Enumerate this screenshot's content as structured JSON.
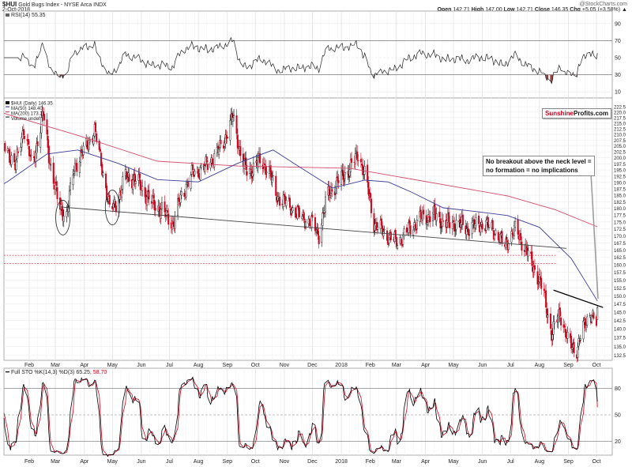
{
  "header": {
    "symbol": "$HUI",
    "name": "Gold Bugs Index - NYSE Arca INDX",
    "date": "2-Oct-2018",
    "watermark": "@StockCharts.com",
    "open_label": "Open",
    "open": "142.71",
    "high_label": "High",
    "high": "147.00",
    "low_label": "Low",
    "low": "142.71",
    "close_label": "Close",
    "close": "146.35",
    "chg_label": "Chg",
    "chg": "+5.05 (+3.58%) ▲"
  },
  "logo": {
    "part1": "Sunshine",
    "part2": "Profits.com",
    "color1": "#d0021b"
  },
  "annotation": {
    "line1": "No breakout above the neck level =",
    "line2": "no formation = no implications"
  },
  "colors": {
    "up": "#000000",
    "down": "#d0021b",
    "ma50": "#3b3b9b",
    "ma200": "#d64a6a",
    "rsi": "#222222",
    "rsi_fill": "#8b3a3a",
    "sto_k": "#000000",
    "sto_d": "#d0021b",
    "levels": "#e0445a"
  },
  "chart_data": [
    {
      "panel": "rsi",
      "type": "line",
      "legend": "RSI(14) 55.35",
      "value": 55.35,
      "ticks": [
        90,
        70,
        50,
        30,
        10
      ],
      "ylim": [
        5,
        95
      ],
      "reference_lines": [
        70,
        30
      ]
    },
    {
      "panel": "price",
      "type": "candlestick",
      "scale": "log",
      "legend": {
        "price": "$HUI (Daily) 146.35",
        "ma50": "MA(50) 148.40",
        "ma200": "MA(200) 173.21",
        "volume": "Volume undef"
      },
      "ylim": [
        131,
        224
      ],
      "ticks": [
        222.5,
        220.0,
        217.5,
        215.0,
        212.5,
        210.0,
        207.5,
        205.0,
        202.5,
        200.0,
        197.5,
        195.0,
        192.5,
        190.0,
        187.5,
        185.0,
        182.5,
        180.0,
        177.5,
        175.0,
        172.5,
        170.0,
        167.5,
        165.0,
        162.5,
        160.0,
        157.5,
        155.0,
        152.5,
        150.0,
        147.5,
        145.0,
        142.5,
        140.0,
        137.5,
        135.0,
        132.5
      ],
      "close_path": [
        [
          "2017-01-03",
          206
        ],
        [
          "2017-01-09",
          203.1
        ],
        [
          "2017-01-17",
          196.1
        ],
        [
          "2017-01-26",
          212.8
        ],
        [
          "2017-02-04",
          196.1
        ],
        [
          "2017-02-16",
          219.1
        ],
        [
          "2017-02-24",
          196.1
        ],
        [
          "2017-03-05",
          180.6
        ],
        [
          "2017-03-13",
          177.4
        ],
        [
          "2017-03-21",
          196.1
        ],
        [
          "2017-03-30",
          201.9
        ],
        [
          "2017-04-12",
          211.5
        ],
        [
          "2017-04-20",
          196.1
        ],
        [
          "2017-04-28",
          179.5
        ],
        [
          "2017-05-07",
          182.8
        ],
        [
          "2017-05-15",
          192.7
        ],
        [
          "2017-05-28",
          190.5
        ],
        [
          "2017-06-10",
          182.8
        ],
        [
          "2017-06-22",
          179.5
        ],
        [
          "2017-07-05",
          174.4
        ],
        [
          "2017-07-14",
          185.0
        ],
        [
          "2017-07-26",
          193.8
        ],
        [
          "2017-08-08",
          196.1
        ],
        [
          "2017-08-21",
          201.9
        ],
        [
          "2017-08-29",
          207.9
        ],
        [
          "2017-09-07",
          217.8
        ],
        [
          "2017-09-15",
          201.9
        ],
        [
          "2017-09-23",
          192.7
        ],
        [
          "2017-10-02",
          198.5
        ],
        [
          "2017-10-15",
          196.1
        ],
        [
          "2017-10-23",
          185.0
        ],
        [
          "2017-11-05",
          181.5
        ],
        [
          "2017-11-17",
          177.4
        ],
        [
          "2017-11-30",
          174.4
        ],
        [
          "2017-12-08",
          170.5
        ],
        [
          "2017-12-17",
          185.0
        ],
        [
          "2017-12-29",
          190.5
        ],
        [
          "2018-01-11",
          196.1
        ],
        [
          "2018-01-19",
          201.9
        ],
        [
          "2018-01-28",
          190.5
        ],
        [
          "2018-02-05",
          174.4
        ],
        [
          "2018-02-18",
          170.5
        ],
        [
          "2018-03-02",
          167.5
        ],
        [
          "2018-03-15",
          172.5
        ],
        [
          "2018-03-28",
          176.5
        ],
        [
          "2018-04-10",
          177.4
        ],
        [
          "2018-04-22",
          174.4
        ],
        [
          "2018-05-05",
          174.4
        ],
        [
          "2018-05-17",
          172.5
        ],
        [
          "2018-05-30",
          174.4
        ],
        [
          "2018-06-12",
          172.5
        ],
        [
          "2018-06-24",
          166.5
        ],
        [
          "2018-07-07",
          172.5
        ],
        [
          "2018-07-15",
          166.5
        ],
        [
          "2018-07-28",
          157.8
        ],
        [
          "2018-08-06",
          150.5
        ],
        [
          "2018-08-14",
          138.3
        ],
        [
          "2018-08-23",
          144.9
        ],
        [
          "2018-08-31",
          136.7
        ],
        [
          "2018-09-09",
          133.5
        ],
        [
          "2018-09-17",
          140.0
        ],
        [
          "2018-09-24",
          145.0
        ],
        [
          "2018-10-01",
          141.3
        ],
        [
          "2018-10-02",
          146.35
        ]
      ],
      "ma50": [
        [
          "2017-01-03",
          189.5
        ],
        [
          "2017-01-09",
          190.4
        ],
        [
          "2017-02-20",
          201.6
        ],
        [
          "2017-03-25",
          203.3
        ],
        [
          "2017-05-07",
          197.7
        ],
        [
          "2017-06-18",
          191.1
        ],
        [
          "2017-08-01",
          190.2
        ],
        [
          "2017-09-12",
          197.7
        ],
        [
          "2017-10-20",
          203.3
        ],
        [
          "2017-11-19",
          195.8
        ],
        [
          "2017-12-23",
          187.8
        ],
        [
          "2018-01-26",
          190.9
        ],
        [
          "2018-02-20",
          190.2
        ],
        [
          "2018-03-17",
          186.2
        ],
        [
          "2018-04-20",
          180.2
        ],
        [
          "2018-05-25",
          178.8
        ],
        [
          "2018-06-28",
          177.3
        ],
        [
          "2018-08-01",
          173.0
        ],
        [
          "2018-09-04",
          162.1
        ],
        [
          "2018-10-02",
          148.4
        ]
      ],
      "ma200": [
        [
          "2017-01-03",
          219.5
        ],
        [
          "2017-01-09",
          218.9
        ],
        [
          "2017-03-25",
          209.6
        ],
        [
          "2017-06-18",
          198.6
        ],
        [
          "2017-09-12",
          196.6
        ],
        [
          "2018-01-10",
          195.7
        ],
        [
          "2018-06-28",
          184.7
        ],
        [
          "2018-08-18",
          179.5
        ],
        [
          "2018-10-02",
          173.21
        ]
      ],
      "trendlines": [
        {
          "from": [
            "2017-03-07",
            180.5
          ],
          "to": [
            "2018-08-30",
            165.6
          ],
          "color": "#444444"
        },
        {
          "from": [
            "2018-08-16",
            151.8
          ],
          "to": [
            "2018-10-08",
            146.4
          ],
          "color": "#000000"
        }
      ],
      "horizontal_levels": [
        163.2,
        160.4
      ],
      "circled_lows": [
        "2017-03-09",
        "2017-05-01"
      ]
    },
    {
      "panel": "stochastic",
      "type": "line",
      "legend_prefix": "Full STO %K(14,3) %D(3) 65.25,",
      "legend_d": "58.70",
      "k_value": 65.25,
      "d_value": 58.7,
      "ticks": [
        80,
        50,
        20
      ],
      "ylim": [
        -5,
        105
      ]
    }
  ],
  "x_axis": {
    "labels": [
      [
        "Feb",
        "2017-02-01"
      ],
      [
        "Mar",
        "2017-03-01"
      ],
      [
        "Apr",
        "2017-04-01"
      ],
      [
        "May",
        "2017-05-01"
      ],
      [
        "Jun",
        "2017-06-01"
      ],
      [
        "Jul",
        "2017-07-01"
      ],
      [
        "Aug",
        "2017-08-01"
      ],
      [
        "Sep",
        "2017-09-01"
      ],
      [
        "Oct",
        "2017-10-01"
      ],
      [
        "Nov",
        "2017-11-01"
      ],
      [
        "Dec",
        "2017-12-01"
      ],
      [
        "2018",
        "2018-01-01"
      ],
      [
        "Feb",
        "2018-02-01"
      ],
      [
        "Mar",
        "2018-03-01"
      ],
      [
        "Apr",
        "2018-04-01"
      ],
      [
        "May",
        "2018-05-01"
      ],
      [
        "Jun",
        "2018-06-01"
      ],
      [
        "Jul",
        "2018-07-01"
      ],
      [
        "Aug",
        "2018-08-01"
      ],
      [
        "Sep",
        "2018-09-01"
      ],
      [
        "Oct",
        "2018-10-01"
      ]
    ]
  }
}
